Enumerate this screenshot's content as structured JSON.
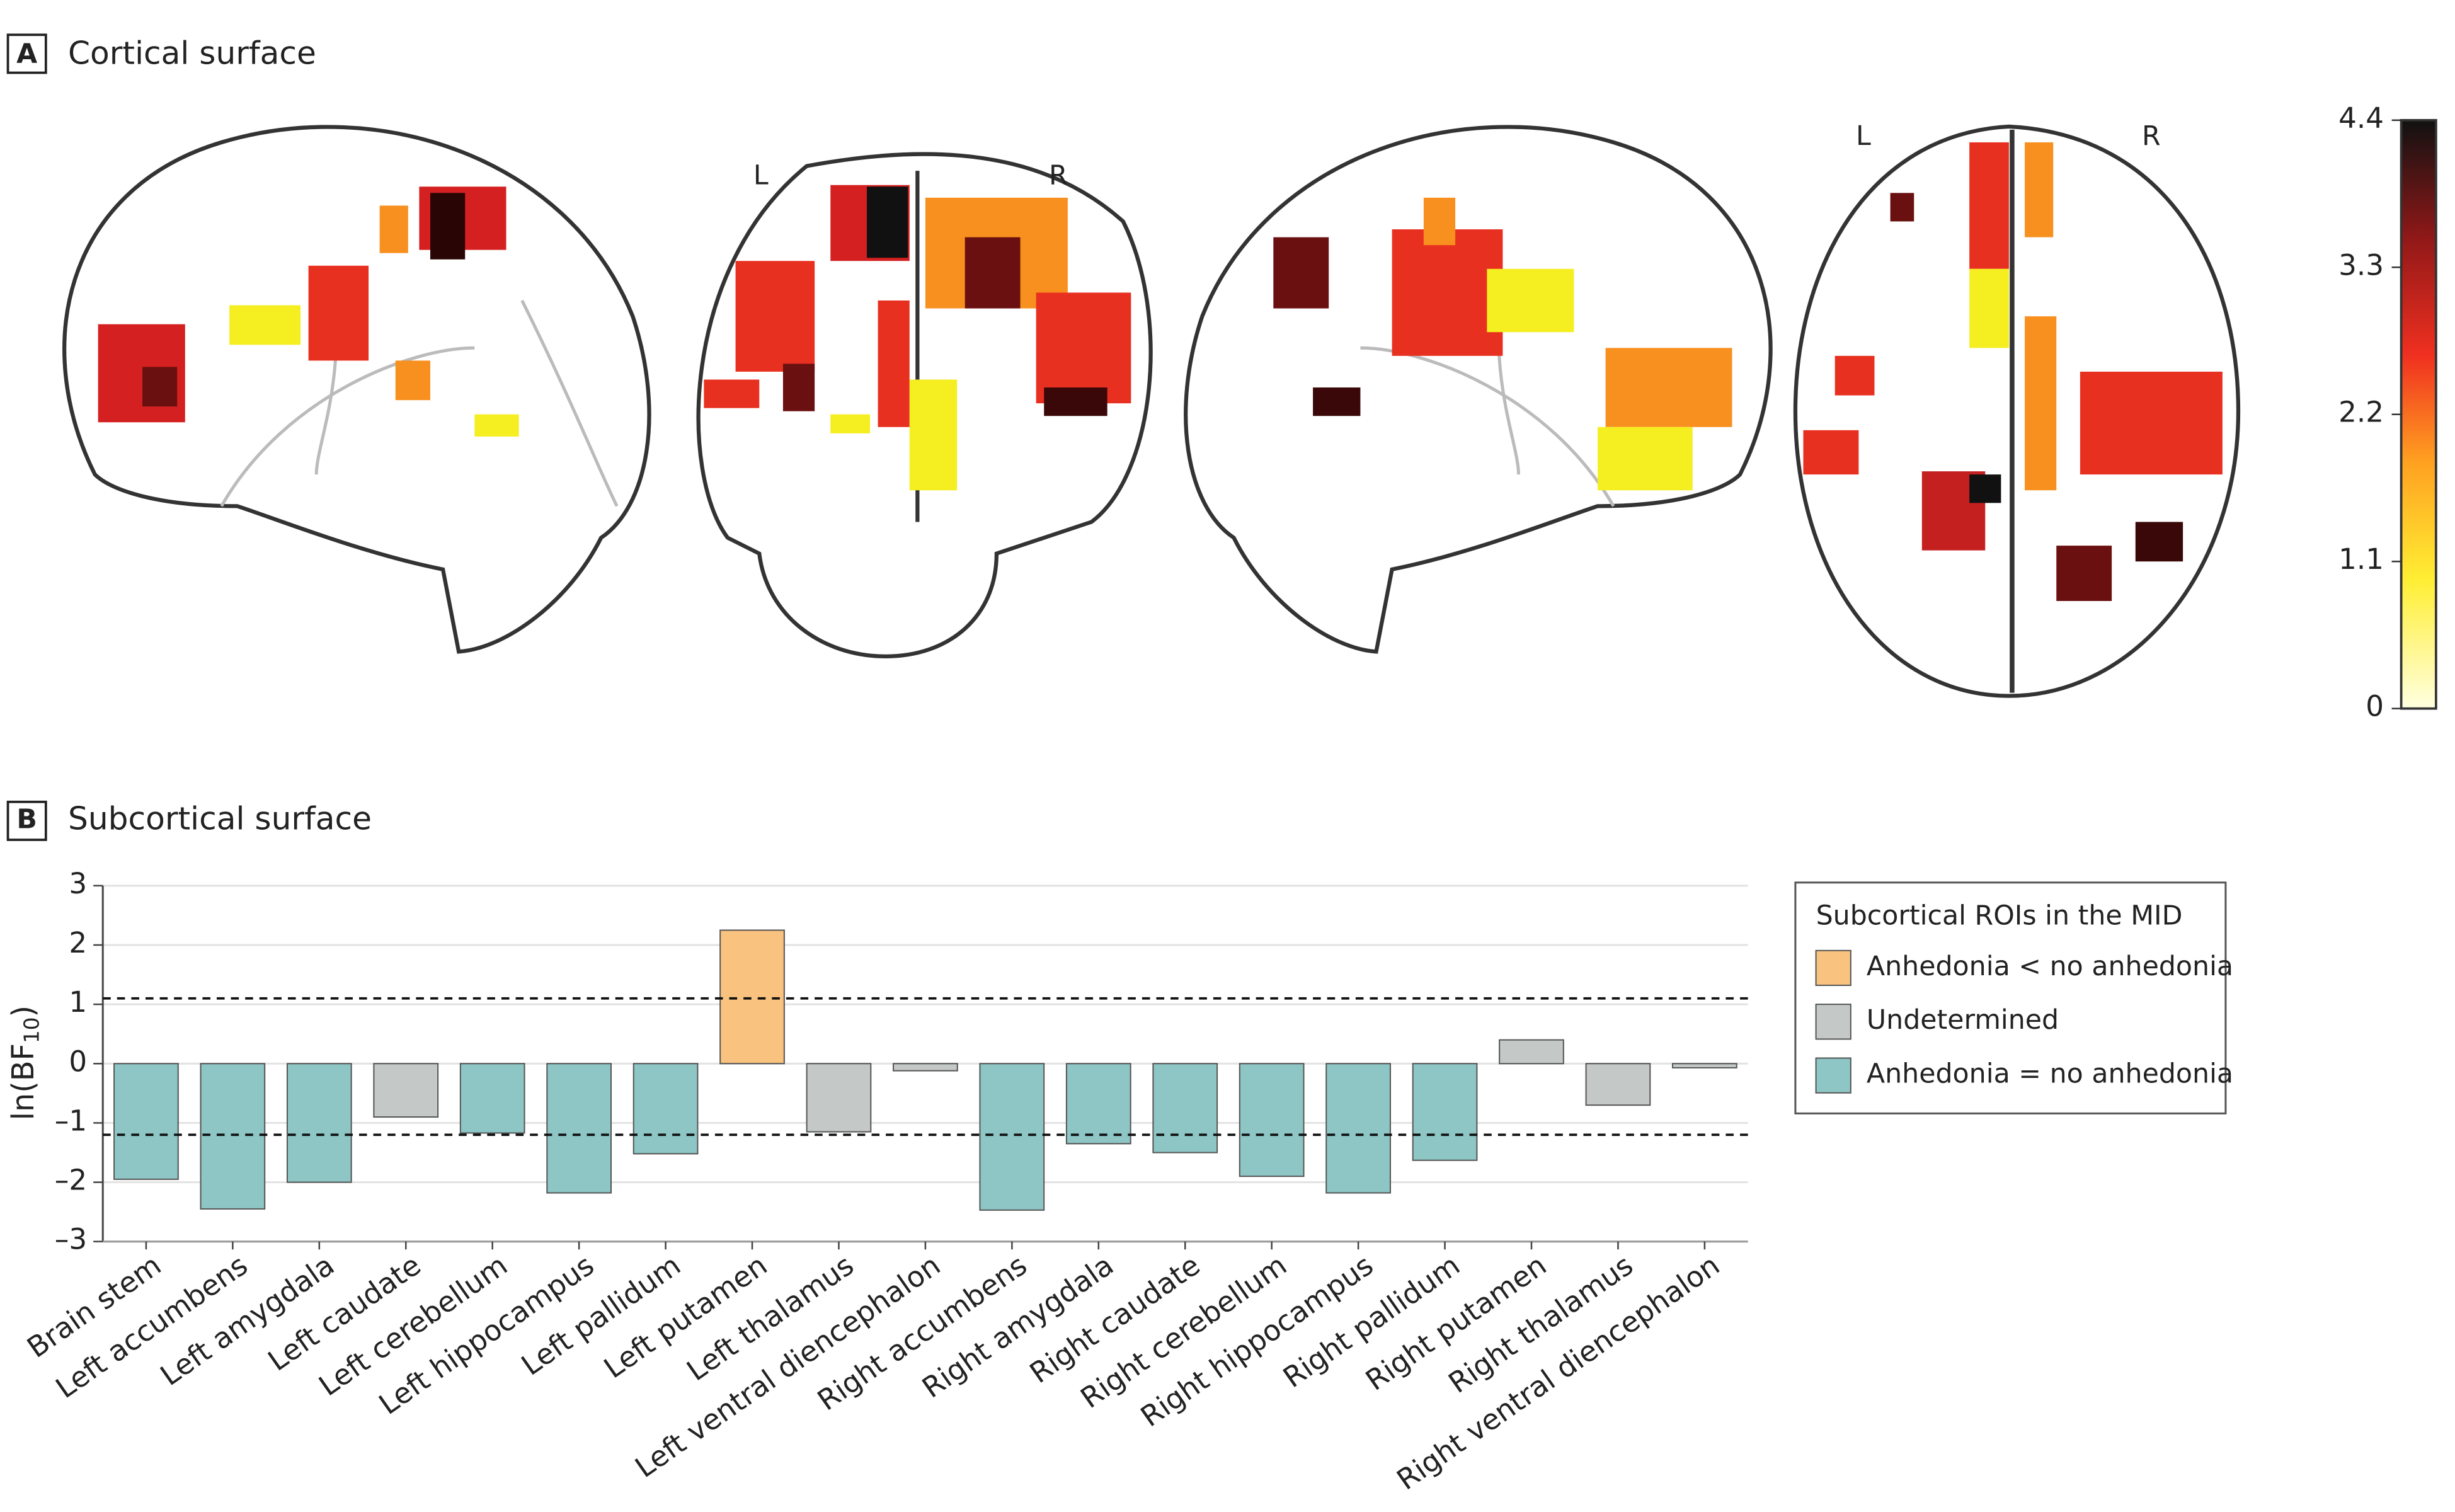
{
  "panel_a": {
    "label": "A",
    "title": "Cortical surface",
    "view_labels": [
      "L",
      "R",
      "L",
      "R"
    ],
    "colorbar": {
      "range": [
        0,
        4.4
      ],
      "ticks": [
        0,
        1.1,
        2.2,
        3.3,
        4.4
      ]
    }
  },
  "chart_data": {
    "type": "bar",
    "panel_label": "B",
    "title": "Subcortical surface",
    "ylabel_parts": [
      "ln(BF",
      "10",
      ")"
    ],
    "categories": [
      "Brain stem",
      "Left accumbens",
      "Left amygdala",
      "Left caudate",
      "Left cerebellum",
      "Left hippocampus",
      "Left pallidum",
      "Left putamen",
      "Left thalamus",
      "Left ventral diencephalon",
      "Right accumbens",
      "Right amygdala",
      "Right caudate",
      "Right cerebellum",
      "Right hippocampus",
      "Right pallidum",
      "Right putamen",
      "Right thalamus",
      "Right ventral diencephalon"
    ],
    "series": [
      {
        "name": "Anhedonia < no anhedonia",
        "color": "#f9c27e",
        "values": [
          null,
          null,
          null,
          null,
          null,
          null,
          null,
          2.25,
          null,
          null,
          null,
          null,
          null,
          null,
          null,
          null,
          null,
          null,
          null
        ]
      },
      {
        "name": "Undetermined",
        "color": "#c4c9c8",
        "values": [
          null,
          null,
          null,
          -0.9,
          null,
          null,
          null,
          null,
          -1.15,
          -0.12,
          null,
          null,
          null,
          null,
          null,
          null,
          0.4,
          -0.7,
          -0.07
        ]
      },
      {
        "name": "Anhedonia = no anhedonia",
        "color": "#8dc6c5",
        "values": [
          -1.95,
          -2.45,
          -2.0,
          null,
          -1.17,
          -2.18,
          -1.52,
          null,
          null,
          null,
          -2.47,
          -1.35,
          -1.5,
          -1.9,
          -2.18,
          -1.63,
          null,
          null,
          null
        ]
      }
    ],
    "legend_title": "Subcortical ROIs in the MID",
    "ylim": [
      -3,
      3
    ],
    "yticks": [
      {
        "value": -3,
        "label": "–3"
      },
      {
        "value": -2,
        "label": "–2"
      },
      {
        "value": -1,
        "label": "–1"
      },
      0,
      1,
      2,
      3
    ],
    "reference_lines": [
      1.1,
      -1.2
    ],
    "grid": true
  }
}
